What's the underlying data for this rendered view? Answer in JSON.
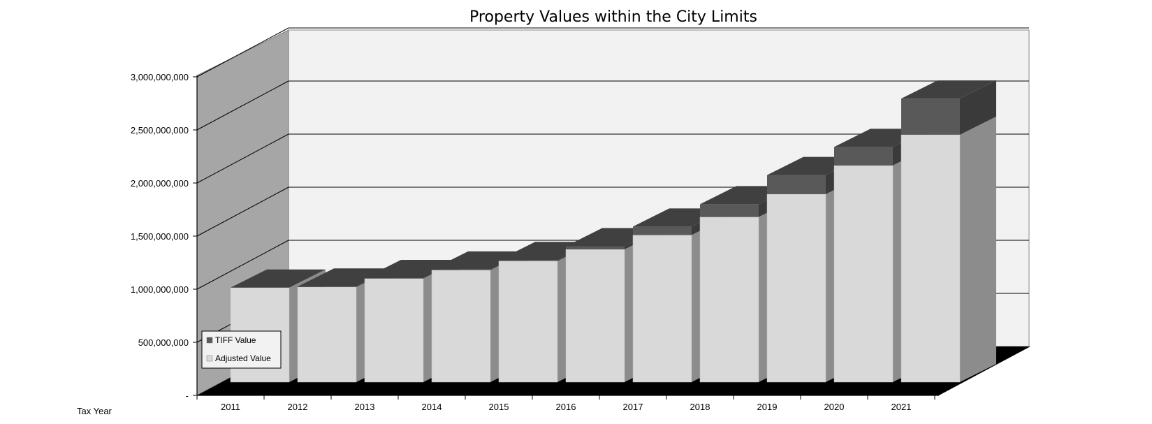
{
  "chart_data": {
    "type": "bar",
    "stacked": true,
    "three_d": true,
    "title": "Property Values within the City Limits",
    "xlabel": "Tax Year",
    "ylabel": "",
    "categories": [
      "2011",
      "2012",
      "2013",
      "2014",
      "2015",
      "2016",
      "2017",
      "2018",
      "2019",
      "2020",
      "2021"
    ],
    "y_tick_labels": [
      "-",
      "500,000,000",
      "1,000,000,000",
      "1,500,000,000",
      "2,000,000,000",
      "2,500,000,000",
      "3,000,000,000"
    ],
    "ylim": [
      0,
      3000000000
    ],
    "grid": true,
    "legend": "bottom-left",
    "series": [
      {
        "name": "Adjusted Value",
        "color": "#d9d9d9",
        "values": [
          890000000,
          895000000,
          975000000,
          1055000000,
          1140000000,
          1250000000,
          1385000000,
          1555000000,
          1770000000,
          2040000000,
          2330000000
        ]
      },
      {
        "name": "TIFF Value",
        "color": "#595959",
        "values": [
          0,
          5000000,
          5000000,
          5000000,
          10000000,
          30000000,
          80000000,
          120000000,
          180000000,
          175000000,
          340000000
        ]
      }
    ]
  }
}
